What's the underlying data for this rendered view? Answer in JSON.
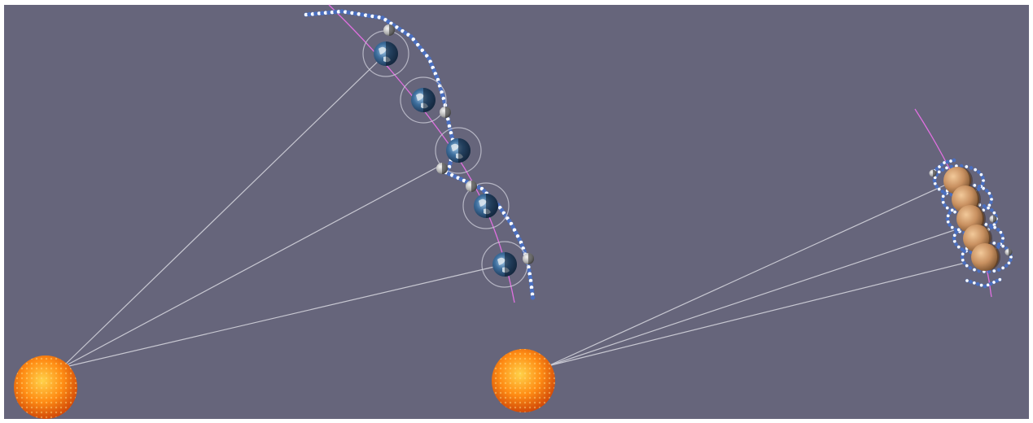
{
  "scene": {
    "background": "#66657b",
    "border": "#ffffff",
    "colors": {
      "sun_light": "#ffd24a",
      "sun_mid": "#ff8c14",
      "sun_dark": "#d24a08",
      "orbit_path": "#e070e0",
      "sight_line": "#c8c8d2",
      "ring": "#c9c9d6",
      "moon_trail_light": "#ffffff",
      "moon_trail_dark": "#4a6fc0",
      "earth_ocean": "#3e6f9e",
      "earth_land": "#e8eef2",
      "planet_body": "#c89060"
    },
    "icons": [
      "sun-icon",
      "earth-icon",
      "moon-icon",
      "planet-icon",
      "satellite-moon-icon"
    ],
    "left_system": {
      "earth_positions": 5,
      "moon_positions": 5
    },
    "right_system": {
      "planet_positions": 5,
      "moon_positions": 5
    }
  }
}
